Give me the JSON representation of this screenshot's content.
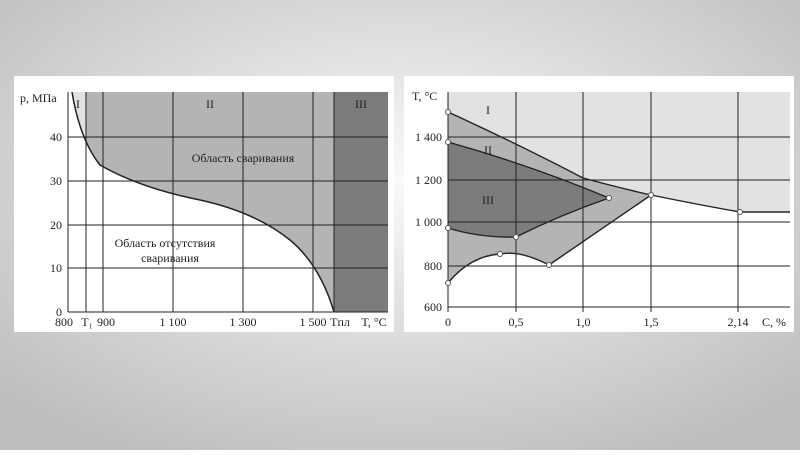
{
  "left": {
    "y_label": "p, МПа",
    "x_label": "T, °C",
    "yticks": [
      "0",
      "10",
      "20",
      "30",
      "40"
    ],
    "xticks": [
      "800",
      "T₁",
      "900",
      "1 100",
      "1 300",
      "1 500",
      "Tпл"
    ],
    "regions": [
      "I",
      "II",
      "III"
    ],
    "welding": "Область сваривания",
    "no_welding": [
      "Область отсутствия",
      "сваривания"
    ]
  },
  "right": {
    "y_label": "T, °C",
    "x_label": "C, %",
    "yticks": [
      "600",
      "800",
      "1 000",
      "1 200",
      "1 400"
    ],
    "xticks": [
      "0",
      "0,5",
      "1,0",
      "1,5",
      "2,14"
    ],
    "regions": [
      "I",
      "II",
      "III"
    ]
  }
}
